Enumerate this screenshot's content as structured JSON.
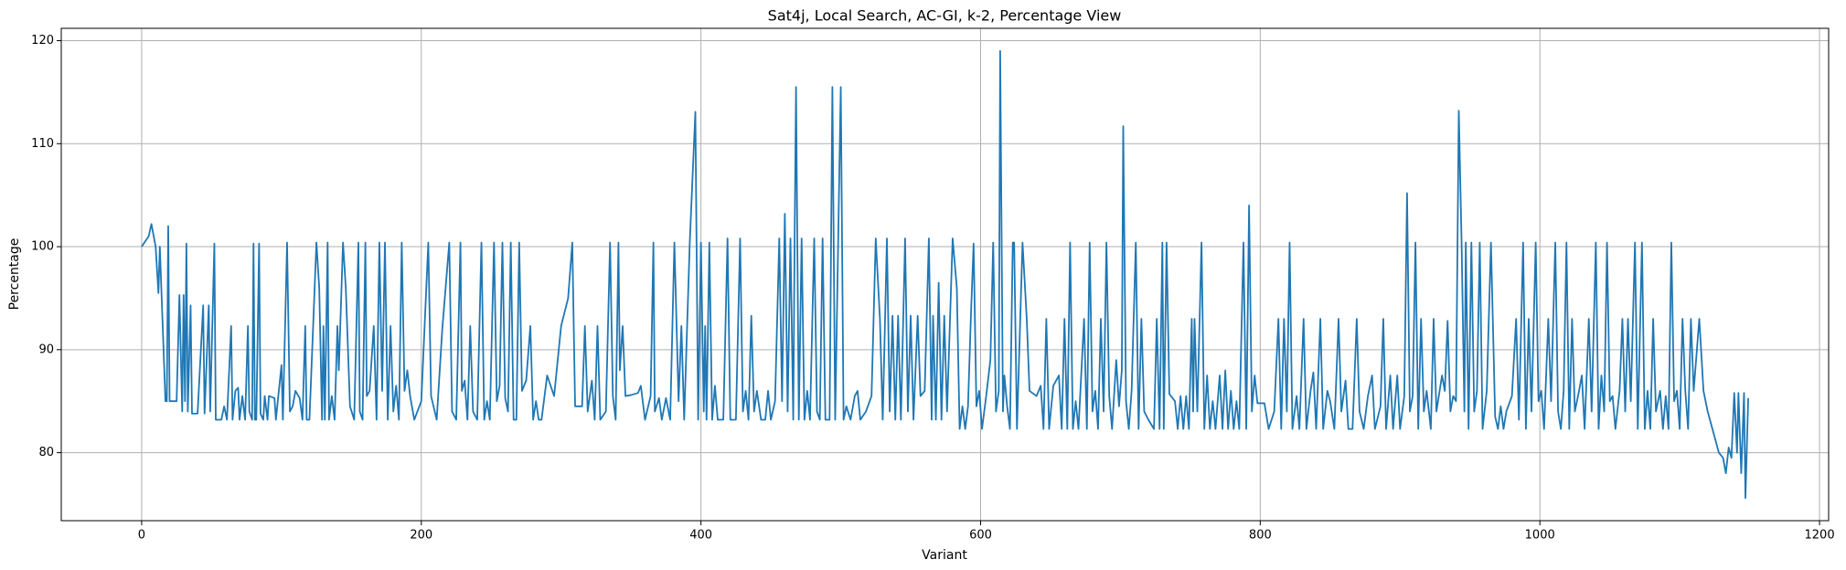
{
  "chart_data": {
    "type": "line",
    "title": "Sat4j, Local Search, AC-GI, k-2, Percentage View",
    "x_label": "Variant",
    "y_label": "Percentage",
    "color": "#1f77b4",
    "grid": true,
    "xlim": [
      -57.5,
      1206.5
    ],
    "ylim": [
      73.4,
      121.2
    ],
    "xticks": [
      0,
      200,
      400,
      600,
      800,
      1000,
      1200
    ],
    "yticks": [
      80,
      90,
      100,
      110,
      120
    ],
    "x": [
      0,
      5,
      7,
      10,
      12,
      13,
      17,
      18,
      19,
      20,
      25,
      27,
      29,
      30,
      31,
      32,
      33,
      35,
      36,
      40,
      44,
      45,
      48,
      49,
      52,
      53,
      57,
      59,
      61,
      64,
      65,
      67,
      69,
      70,
      72,
      74,
      76,
      77,
      79,
      80,
      81,
      82,
      84,
      85,
      87,
      88,
      90,
      91,
      95,
      96,
      100,
      101,
      104,
      106,
      108,
      110,
      113,
      115,
      117,
      118,
      120,
      125,
      127,
      129,
      130,
      131,
      133,
      134,
      136,
      138,
      140,
      141,
      144,
      146,
      149,
      152,
      155,
      156,
      158,
      160,
      161,
      163,
      166,
      168,
      170,
      172,
      174,
      176,
      178,
      180,
      182,
      184,
      186,
      188,
      190,
      192,
      195,
      200,
      205,
      207,
      211,
      215,
      220,
      222,
      225,
      228,
      229,
      231,
      233,
      235,
      237,
      240,
      243,
      245,
      247,
      249,
      252,
      254,
      256,
      258,
      260,
      262,
      264,
      266,
      268,
      270,
      272,
      275,
      278,
      280,
      282,
      284,
      286,
      290,
      295,
      300,
      305,
      308,
      310,
      315,
      317,
      319,
      322,
      324,
      326,
      328,
      332,
      335,
      337,
      339,
      341,
      342,
      344,
      346,
      350,
      355,
      357,
      360,
      364,
      366,
      367,
      370,
      372,
      375,
      378,
      381,
      384,
      386,
      388,
      392,
      396,
      398,
      400,
      402,
      403,
      404,
      406,
      408,
      410,
      412,
      416,
      419,
      421,
      425,
      428,
      430,
      432,
      434,
      436,
      438,
      440,
      443,
      446,
      448,
      450,
      453,
      456,
      458,
      460,
      462,
      464,
      466,
      467,
      468,
      470,
      472,
      474,
      476,
      478,
      481,
      483,
      485,
      487,
      489,
      492,
      494,
      496,
      500,
      502,
      504,
      507,
      510,
      512,
      514,
      518,
      522,
      525,
      528,
      530,
      533,
      535,
      537,
      539,
      541,
      543,
      546,
      548,
      550,
      552,
      555,
      557,
      560,
      563,
      565,
      566,
      568,
      570,
      572,
      574,
      576,
      580,
      583,
      585,
      587,
      589,
      591,
      593,
      595,
      597,
      599,
      601,
      604,
      607,
      609,
      611,
      613,
      614,
      616,
      617,
      619,
      621,
      623,
      624,
      626,
      630,
      633,
      635,
      640,
      643,
      645,
      647,
      649,
      652,
      656,
      658,
      660,
      662,
      664,
      666,
      668,
      670,
      674,
      676,
      678,
      680,
      682,
      684,
      686,
      688,
      690,
      692,
      694,
      697,
      699,
      701,
      702,
      704,
      706,
      708,
      711,
      713,
      715,
      717,
      720,
      724,
      726,
      728,
      730,
      731,
      733,
      735,
      739,
      741,
      743,
      745,
      747,
      749,
      751,
      752,
      753,
      755,
      758,
      760,
      762,
      764,
      766,
      768,
      771,
      773,
      775,
      777,
      779,
      781,
      783,
      785,
      788,
      790,
      792,
      794,
      796,
      798,
      803,
      806,
      810,
      813,
      815,
      817,
      819,
      821,
      823,
      826,
      828,
      831,
      833,
      836,
      838,
      840,
      843,
      845,
      848,
      850,
      853,
      856,
      858,
      861,
      863,
      866,
      869,
      871,
      874,
      877,
      880,
      882,
      886,
      888,
      890,
      893,
      895,
      898,
      900,
      903,
      905,
      907,
      909,
      911,
      913,
      915,
      917,
      919,
      922,
      924,
      926,
      930,
      932,
      934,
      936,
      938,
      940,
      942,
      944,
      946,
      947,
      949,
      951,
      953,
      955,
      957,
      959,
      962,
      965,
      968,
      970,
      972,
      974,
      976,
      980,
      983,
      985,
      988,
      990,
      992,
      994,
      997,
      999,
      1001,
      1003,
      1006,
      1008,
      1011,
      1013,
      1015,
      1017,
      1019,
      1021,
      1023,
      1025,
      1028,
      1030,
      1032,
      1035,
      1037,
      1040,
      1042,
      1044,
      1046,
      1048,
      1050,
      1052,
      1054,
      1057,
      1059,
      1061,
      1063,
      1065,
      1068,
      1070,
      1073,
      1075,
      1077,
      1079,
      1081,
      1083,
      1086,
      1088,
      1090,
      1092,
      1094,
      1096,
      1098,
      1100,
      1102,
      1104,
      1106,
      1108,
      1110,
      1114,
      1117,
      1120,
      1124,
      1128,
      1131,
      1133,
      1135,
      1137,
      1139,
      1141,
      1142,
      1144,
      1146,
      1147,
      1149
    ],
    "values": [
      100,
      101,
      102.2,
      100,
      95.5,
      100,
      85,
      85,
      102,
      85,
      85,
      95.3,
      84,
      95.3,
      85,
      100.3,
      84,
      94.3,
      83.8,
      83.8,
      94.3,
      83.8,
      94.3,
      84,
      100.3,
      83.2,
      83.2,
      84.5,
      83.2,
      92.3,
      83.2,
      86,
      86.3,
      83.2,
      85.5,
      83.2,
      92.3,
      84,
      83.2,
      100.3,
      83.2,
      83.2,
      100.3,
      83.8,
      83.2,
      85.5,
      83.2,
      85.5,
      85.3,
      83.2,
      88.5,
      83.2,
      100.4,
      84,
      84.5,
      86,
      85.3,
      83.2,
      92.3,
      83.2,
      83.2,
      100.4,
      96,
      83.2,
      92.3,
      83.2,
      100.4,
      83.2,
      85.5,
      83.2,
      92.3,
      88,
      100.4,
      96,
      84.5,
      83.2,
      100.4,
      84,
      83.2,
      100.4,
      85.5,
      86,
      92.3,
      83.2,
      100.4,
      86,
      100.4,
      83.2,
      92.3,
      84,
      86.5,
      83.2,
      100.4,
      86,
      88,
      85.5,
      83.2,
      85,
      100.4,
      85.5,
      83.2,
      92,
      100.4,
      84,
      83.2,
      100.4,
      86,
      87,
      83.2,
      92.3,
      84,
      83.2,
      100.4,
      83.2,
      85,
      83.2,
      100.4,
      85,
      86.5,
      100.4,
      85.3,
      84,
      100.4,
      83.2,
      83.2,
      100.4,
      86,
      87,
      92.3,
      83.2,
      85,
      83.2,
      83.2,
      87.5,
      85.5,
      92.3,
      95,
      100.4,
      84.5,
      84.5,
      92.3,
      84,
      87,
      83.2,
      92.3,
      83.2,
      84,
      100.4,
      85.5,
      83.2,
      100.4,
      88,
      92.3,
      85.5,
      85.6,
      85.8,
      86.5,
      83.2,
      85.5,
      100.4,
      84,
      85.3,
      83.2,
      85.3,
      83.2,
      100.4,
      85,
      92.3,
      83.2,
      100.4,
      113.1,
      83.2,
      100.4,
      84,
      92.3,
      83.2,
      100.4,
      83.2,
      86.5,
      83.2,
      83.2,
      100.8,
      83.2,
      83.2,
      100.8,
      84,
      86,
      83.2,
      93.3,
      84,
      86,
      83.2,
      83.2,
      86,
      83.2,
      85,
      100.8,
      85,
      103.2,
      84,
      100.8,
      83.2,
      100.8,
      115.5,
      83.2,
      100.8,
      83.2,
      86,
      83.2,
      100.8,
      84,
      83.2,
      100.8,
      83.2,
      83.2,
      115.5,
      83.2,
      115.5,
      83.2,
      84.5,
      83.2,
      85.5,
      86,
      83.2,
      84,
      85.5,
      100.8,
      93,
      83.2,
      100.8,
      84,
      93.3,
      83.2,
      93.3,
      83.2,
      100.8,
      84,
      93.3,
      83.2,
      93.3,
      85.5,
      86,
      100.8,
      83.2,
      93.3,
      83.2,
      96.5,
      83.2,
      93.3,
      84,
      100.8,
      96,
      82.3,
      84.5,
      82.3,
      84.5,
      93,
      100.3,
      84.5,
      86,
      82.3,
      85.5,
      89,
      100.4,
      84,
      86,
      119,
      84,
      87.5,
      84.5,
      82.3,
      100.4,
      100.4,
      82.3,
      100.4,
      93,
      86,
      85.5,
      86.5,
      82.3,
      93,
      82.3,
      86.5,
      87.5,
      82.3,
      93,
      82.3,
      100.4,
      82.3,
      85,
      82.3,
      93,
      82.3,
      100.4,
      84,
      86,
      82.3,
      93,
      84,
      100.4,
      85.5,
      82.3,
      89,
      84.5,
      88,
      111.7,
      85,
      82.3,
      86,
      100.4,
      82.3,
      93,
      84,
      83.2,
      82.3,
      93,
      82.3,
      100.4,
      82.3,
      100.4,
      85.7,
      85,
      82.3,
      85.5,
      82.3,
      85.5,
      82.3,
      93,
      84,
      93,
      84,
      100.4,
      82.3,
      87.5,
      82.3,
      85,
      82.3,
      87.5,
      82.3,
      88,
      82.3,
      86,
      82.3,
      85,
      82.3,
      100.4,
      82.3,
      104,
      84,
      87.5,
      84.8,
      84.8,
      82.3,
      84,
      93,
      82.3,
      93,
      84,
      100.4,
      82.3,
      85.5,
      82.3,
      93,
      82.3,
      86,
      87.8,
      82.3,
      93,
      82.3,
      86,
      85,
      82.3,
      93,
      84,
      87,
      82.3,
      82.3,
      93,
      84,
      82.3,
      85.5,
      87.5,
      82.3,
      84.5,
      93,
      82.3,
      87.5,
      82.3,
      87.5,
      82.3,
      85.5,
      105.2,
      84,
      85.5,
      100.4,
      82.3,
      93,
      84,
      86,
      82.3,
      93,
      84,
      87.5,
      86,
      92.8,
      84,
      85.5,
      85,
      113.2,
      100.4,
      84,
      100.4,
      82.3,
      100.4,
      84,
      86,
      100.4,
      82.3,
      86,
      100.4,
      83.5,
      82.3,
      84.5,
      82.3,
      84,
      85.5,
      93,
      83.2,
      100.4,
      82.3,
      93,
      84,
      100.4,
      85,
      86,
      82.3,
      93,
      85,
      100.4,
      84,
      82.3,
      86,
      100.4,
      82.3,
      93,
      84,
      86,
      87.5,
      82.3,
      93,
      84,
      100.4,
      82.3,
      87.5,
      84,
      100.4,
      85,
      85.5,
      82.3,
      86,
      93,
      84,
      93,
      85,
      100.4,
      82.3,
      100.4,
      82.3,
      86,
      82.3,
      93,
      84,
      86,
      82.3,
      85.5,
      82.3,
      100.4,
      85,
      86,
      82.3,
      93,
      86,
      82.3,
      93,
      86,
      93,
      86,
      84,
      82,
      80,
      79.5,
      78,
      80.5,
      79.5,
      85.8,
      80,
      85.8,
      78,
      85.8,
      75.6,
      85.3
    ]
  }
}
